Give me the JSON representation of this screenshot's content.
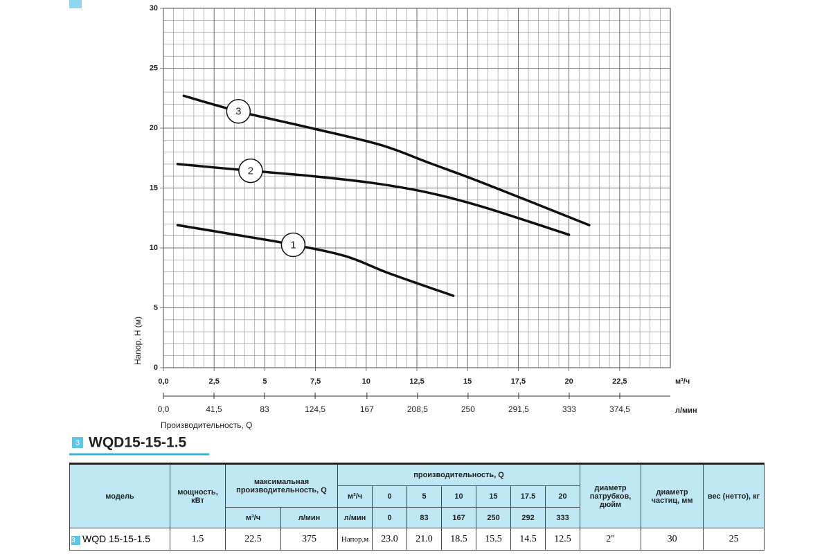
{
  "chart_data": {
    "type": "line",
    "xlabel": "Производительность, Q",
    "ylabel": "Напор, H (м)",
    "x_unit": "м³/ч",
    "x2_unit": "л/мин",
    "xlim": [
      0,
      25
    ],
    "xticks": [
      {
        "value": 0,
        "label": "0,0"
      },
      {
        "value": 2.5,
        "label": "2,5"
      },
      5,
      {
        "value": 7.5,
        "label": "7,5"
      },
      10,
      {
        "value": 12.5,
        "label": "12,5"
      },
      15,
      {
        "value": 17.5,
        "label": "17,5"
      },
      20,
      {
        "value": 22.5,
        "label": "22,5"
      }
    ],
    "x2lim": [
      0,
      416
    ],
    "x2ticks": [
      {
        "value": 0,
        "label": "0,0"
      },
      {
        "value": 41.5,
        "label": "41,5"
      },
      83,
      {
        "value": 124.5,
        "label": "124,5"
      },
      167,
      {
        "value": 208.5,
        "label": "208,5"
      },
      250,
      {
        "value": 291.5,
        "label": "291,5"
      },
      333,
      {
        "value": 374.5,
        "label": "374,5"
      }
    ],
    "ylim": [
      0,
      30
    ],
    "yticks": [
      0,
      5,
      10,
      15,
      20,
      25,
      30
    ],
    "grid": true,
    "series": [
      {
        "name": "1",
        "color": "#111111",
        "x": [
          0.7,
          3.2,
          6.3,
          9.0,
          11.1,
          14.3
        ],
        "values": [
          11.9,
          11.2,
          10.3,
          9.3,
          7.9,
          6.0
        ]
      },
      {
        "name": "2",
        "color": "#111111",
        "x": [
          0.7,
          3.9,
          7.3,
          10.4,
          13.1,
          15.8,
          20.0
        ],
        "values": [
          17.0,
          16.5,
          16.0,
          15.4,
          14.6,
          13.4,
          11.1
        ]
      },
      {
        "name": "3",
        "color": "#111111",
        "x": [
          1.0,
          3.7,
          7.3,
          10.7,
          13.1,
          15.8,
          21.0
        ],
        "values": [
          22.7,
          21.4,
          20.0,
          18.6,
          17.1,
          15.4,
          11.9
        ]
      }
    ]
  },
  "header": {
    "badge": "3",
    "title": "WQD15-15-1.5"
  },
  "table": {
    "header": {
      "model": "модель",
      "power": "мощность, кВт",
      "max_flow": "максимальная производительность, Q",
      "flow": "производительность, Q",
      "pipe": "диаметр патрубков, дюйм",
      "particle": "диаметр частиц, мм",
      "weight": "вес (нетто), кг"
    },
    "max_units": [
      "м³/ч",
      "л/мин"
    ],
    "flow_m3_label": "м³/ч",
    "flow_m3": [
      "0",
      "5",
      "10",
      "15",
      "17.5",
      "20"
    ],
    "flow_lmin_label": "л/мин",
    "flow_lmin": [
      "0",
      "83",
      "167",
      "250",
      "292",
      "333"
    ],
    "row": {
      "badge": "3",
      "cells": [
        "WQD 15-15-1.5",
        "1.5",
        "22.5",
        "375",
        "Напор,м",
        "23.0",
        "21.0",
        "18.5",
        "15.5",
        "14.5",
        "12.5",
        "2\"",
        "30",
        "25"
      ]
    }
  }
}
